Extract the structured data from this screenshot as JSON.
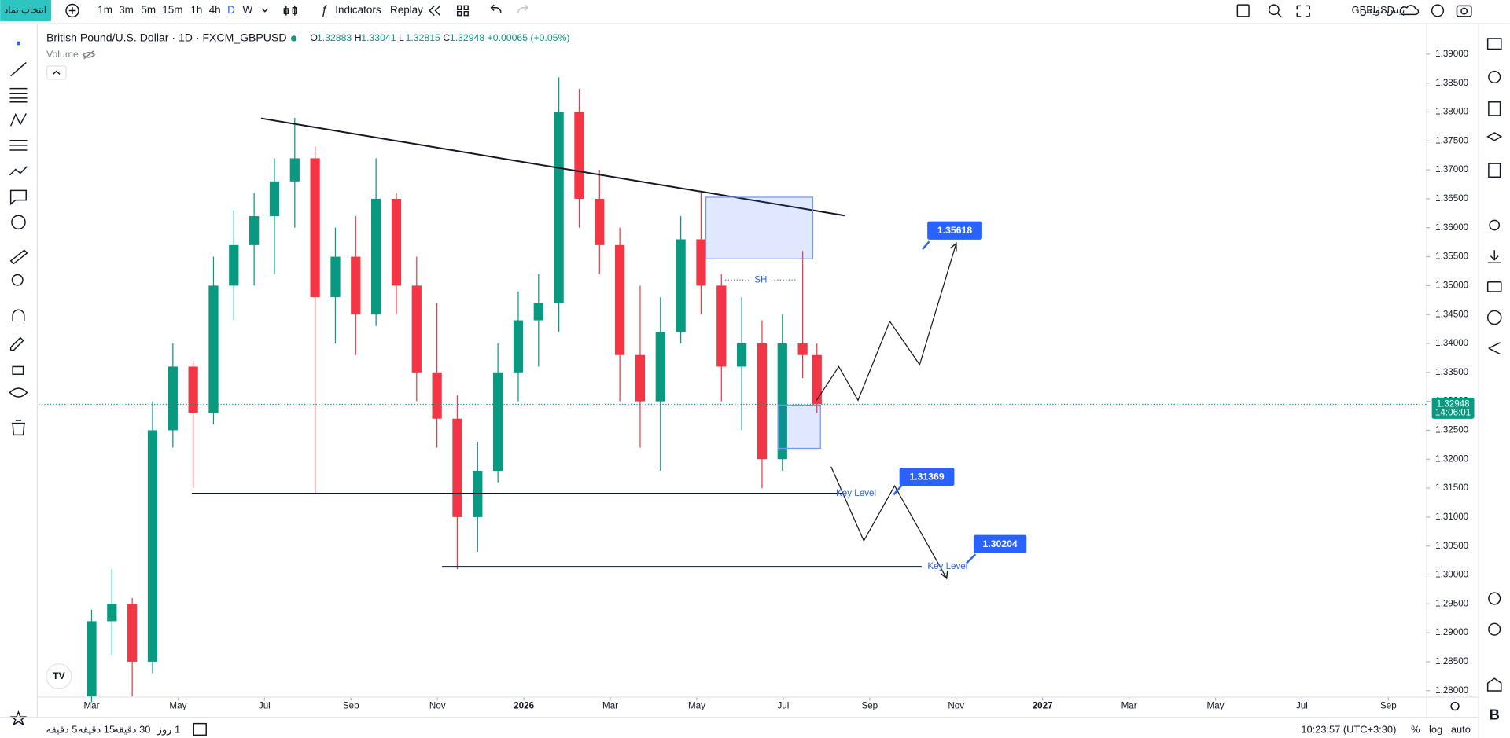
{
  "toolbar": {
    "symbol_search": "انتخاب نماد",
    "intervals": [
      "1m",
      "3m",
      "5m",
      "15m",
      "1h",
      "4h",
      "D",
      "W"
    ],
    "indicators": "Indicators",
    "replay": "Replay",
    "symbol": "GBPUSD",
    "draft": "پیش نویس"
  },
  "chart_data": {
    "type": "candlestick",
    "title": "British Pound/U.S. Dollar · 1D · FXCM_GBPUSD",
    "ohlc_labels": [
      "O",
      "H",
      "L",
      "C"
    ],
    "ohlc": [
      1.32883,
      1.33041,
      1.32815,
      1.32948
    ],
    "change": "+0.00065 (+0.05%)",
    "volume": "Volume",
    "x": [
      2.0,
      2.47,
      2.94,
      3.41,
      3.88,
      4.35,
      4.82,
      5.29,
      5.76,
      6.23,
      6.7,
      7.17,
      7.64,
      8.11,
      8.58,
      9.05,
      9.52,
      9.99,
      10.46,
      10.93,
      11.4,
      11.87,
      12.34,
      12.81,
      13.28,
      13.75,
      14.22,
      14.69,
      15.16,
      15.63,
      16.1,
      16.57,
      17.04,
      17.51,
      17.98,
      18.45,
      18.78
    ],
    "open": [
      1.279,
      1.292,
      1.295,
      1.285,
      1.325,
      1.336,
      1.328,
      1.35,
      1.357,
      1.362,
      1.368,
      1.372,
      1.348,
      1.355,
      1.345,
      1.365,
      1.35,
      1.335,
      1.327,
      1.31,
      1.318,
      1.335,
      1.344,
      1.347,
      1.38,
      1.365,
      1.357,
      1.338,
      1.33,
      1.342,
      1.358,
      1.35,
      1.336,
      1.34,
      1.32,
      1.34,
      1.338
    ],
    "high": [
      1.294,
      1.301,
      1.296,
      1.33,
      1.34,
      1.337,
      1.355,
      1.363,
      1.366,
      1.372,
      1.379,
      1.374,
      1.36,
      1.362,
      1.372,
      1.366,
      1.355,
      1.347,
      1.331,
      1.323,
      1.34,
      1.349,
      1.352,
      1.386,
      1.384,
      1.37,
      1.36,
      1.35,
      1.348,
      1.362,
      1.366,
      1.352,
      1.348,
      1.344,
      1.345,
      1.356,
      1.34
    ],
    "low": [
      1.278,
      1.286,
      1.279,
      1.283,
      1.322,
      1.315,
      1.326,
      1.344,
      1.35,
      1.352,
      1.36,
      1.314,
      1.34,
      1.338,
      1.343,
      1.345,
      1.33,
      1.322,
      1.301,
      1.304,
      1.316,
      1.33,
      1.336,
      1.342,
      1.36,
      1.352,
      1.33,
      1.322,
      1.318,
      1.34,
      1.345,
      1.33,
      1.325,
      1.315,
      1.318,
      1.334,
      1.328
    ],
    "close": [
      1.292,
      1.295,
      1.285,
      1.325,
      1.336,
      1.328,
      1.35,
      1.357,
      1.362,
      1.368,
      1.372,
      1.348,
      1.355,
      1.345,
      1.365,
      1.35,
      1.335,
      1.327,
      1.31,
      1.318,
      1.335,
      1.344,
      1.347,
      1.38,
      1.365,
      1.357,
      1.338,
      1.33,
      1.342,
      1.358,
      1.35,
      1.336,
      1.34,
      1.32,
      1.34,
      1.338,
      1.3295
    ],
    "up_color": "#089981",
    "down_color": "#f23645",
    "xlim": [
      0.775,
      32.85
    ],
    "xticks": [
      {
        "value": 2,
        "label": "Mar"
      },
      {
        "value": 4,
        "label": "May"
      },
      {
        "value": 6,
        "label": "Jul"
      },
      {
        "value": 8,
        "label": "Sep"
      },
      {
        "value": 10,
        "label": "Nov"
      },
      {
        "value": 12,
        "label": "2026"
      },
      {
        "value": 14,
        "label": "Mar"
      },
      {
        "value": 16,
        "label": "May"
      },
      {
        "value": 18,
        "label": "Jul"
      },
      {
        "value": 20,
        "label": "Sep"
      },
      {
        "value": 22,
        "label": "Nov"
      },
      {
        "value": 24,
        "label": "2027"
      },
      {
        "value": 26,
        "label": "Mar"
      },
      {
        "value": 28,
        "label": "May"
      },
      {
        "value": 30,
        "label": "Jul"
      },
      {
        "value": 32,
        "label": "Sep"
      }
    ],
    "ylim": [
      1.2788,
      1.3947
    ],
    "yticks": [
      {
        "value": 1.39,
        "label": "1.39000"
      },
      {
        "value": 1.385,
        "label": "1.38500"
      },
      {
        "value": 1.38,
        "label": "1.38000"
      },
      {
        "value": 1.375,
        "label": "1.37500"
      },
      {
        "value": 1.37,
        "label": "1.37000"
      },
      {
        "value": 1.365,
        "label": "1.36500"
      },
      {
        "value": 1.36,
        "label": "1.36000"
      },
      {
        "value": 1.355,
        "label": "1.35500"
      },
      {
        "value": 1.35,
        "label": "1.35000"
      },
      {
        "value": 1.345,
        "label": "1.34500"
      },
      {
        "value": 1.34,
        "label": "1.34000"
      },
      {
        "value": 1.335,
        "label": "1.33500"
      },
      {
        "value": 1.33,
        "label": "1.33000"
      },
      {
        "value": 1.325,
        "label": "1.32500"
      },
      {
        "value": 1.32,
        "label": "1.32000"
      },
      {
        "value": 1.315,
        "label": "1.31500"
      },
      {
        "value": 1.31,
        "label": "1.31000"
      },
      {
        "value": 1.305,
        "label": "1.30500"
      },
      {
        "value": 1.3,
        "label": "1.30000"
      },
      {
        "value": 1.295,
        "label": "1.29500"
      },
      {
        "value": 1.29,
        "label": "1.29000"
      },
      {
        "value": 1.285,
        "label": "1.28500"
      },
      {
        "value": 1.28,
        "label": "1.28000"
      }
    ],
    "last_price": 1.32948,
    "countdown": "14:06:01",
    "targets": [
      1.35618,
      1.31369,
      1.30204
    ],
    "swing_label": "SH",
    "key_level": "Key Level"
  },
  "status_bar": {
    "intervals": [
      "5 دقیقه",
      "15 دقیقه",
      "30 دقیقه",
      "1 روز"
    ],
    "time": "10:23:57 (UTC+3:30)",
    "percent": "%",
    "log": "log",
    "auto": "auto"
  }
}
